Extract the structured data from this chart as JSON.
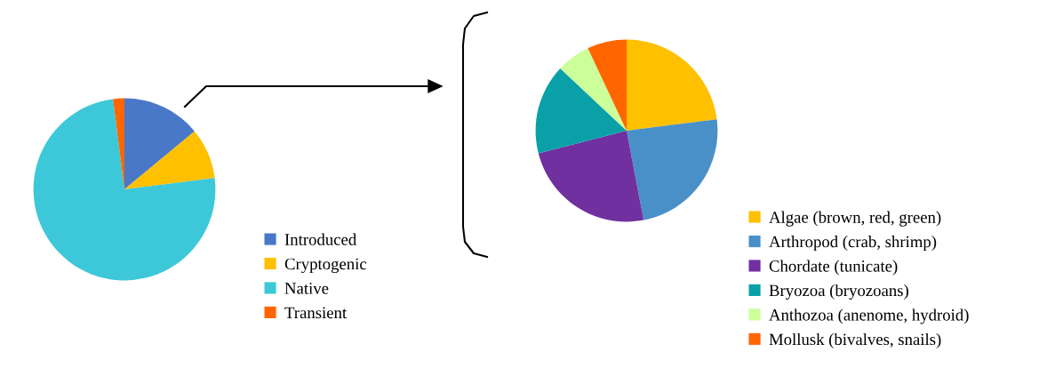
{
  "chart_data": [
    {
      "type": "pie",
      "categories": [
        "Introduced",
        "Cryptogenic",
        "Native",
        "Transient"
      ],
      "values": [
        14,
        9,
        75,
        2
      ],
      "colors": [
        "#4a78c8",
        "#ffc000",
        "#3cc8d8",
        "#ff6600"
      ],
      "legend": "bottom right"
    },
    {
      "type": "pie",
      "categories": [
        "Algae (brown, red, green)",
        "Arthropod (crab, shrimp)",
        "Chordate (tunicate)",
        "Bryozoa (bryozoans)",
        "Anthozoa (anenome, hydroid)",
        "Mollusk (bivalves, snails)"
      ],
      "values": [
        23,
        24,
        24,
        16,
        6,
        7
      ],
      "colors": [
        "#ffc000",
        "#4a90c8",
        "#7030a0",
        "#0aa0a8",
        "#ccff99",
        "#ff6600"
      ],
      "legend": "bottom right"
    }
  ]
}
